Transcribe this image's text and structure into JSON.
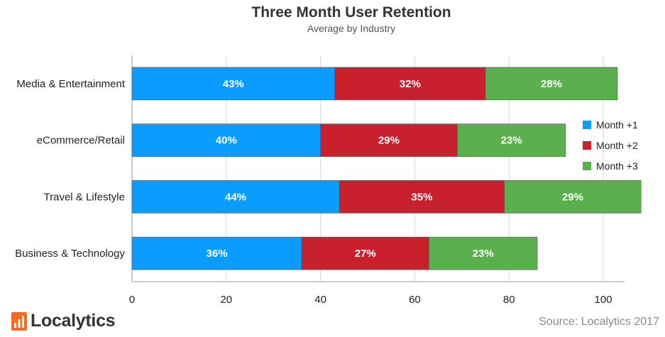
{
  "chart_data": {
    "type": "bar",
    "orientation": "horizontal",
    "stacked": true,
    "title": "Three Month User Retention",
    "subtitle": "Average  by Industry",
    "categories": [
      "Media & Entertainment",
      "eCommerce/Retail",
      "Travel & Lifestyle",
      "Business & Technology"
    ],
    "series": [
      {
        "name": "Month +1",
        "color": "#0a9dff",
        "values": [
          43,
          40,
          44,
          36
        ],
        "labels": [
          "43%",
          "40%",
          "44%",
          "36%"
        ]
      },
      {
        "name": "Month +2",
        "color": "#c8202c",
        "values": [
          32,
          29,
          35,
          27
        ],
        "labels": [
          "32%",
          "29%",
          "35%",
          "27%"
        ]
      },
      {
        "name": "Month +3",
        "color": "#5bb04e",
        "values": [
          28,
          23,
          29,
          23
        ],
        "labels": [
          "28%",
          "23%",
          "29%",
          "23%"
        ]
      }
    ],
    "xlim": [
      0,
      103
    ],
    "xticks": [
      "0",
      "20",
      "40",
      "60",
      "80",
      "100"
    ],
    "grid": true,
    "legend": "right"
  },
  "footer": {
    "logo_text": "Localytics",
    "source": "Source: Localytics  2017"
  },
  "logo_icon": "localytics-bars-icon",
  "colors": {
    "logo_orange": "#f26b21"
  }
}
